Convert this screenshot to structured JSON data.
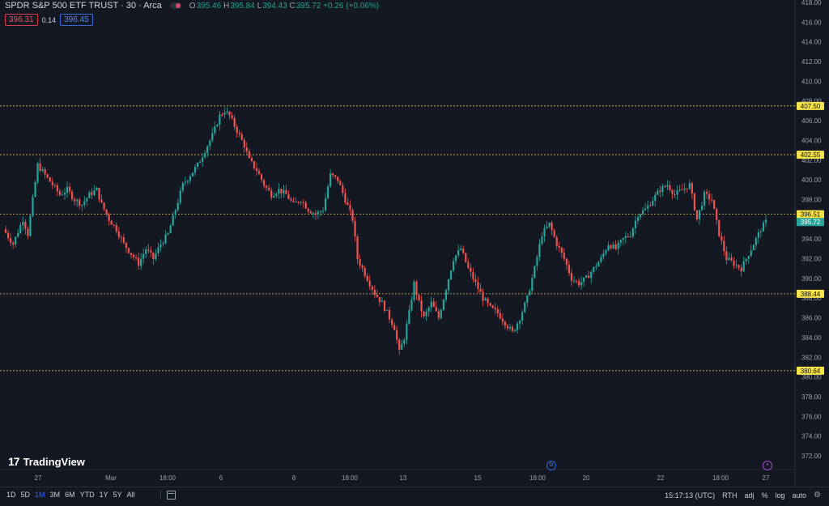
{
  "legend": {
    "title": "SPDR S&P 500 ETF TRUST · 30 · Arca",
    "o_label": "O",
    "o_value": "395.46",
    "h_label": "H",
    "h_value": "395.84",
    "l_label": "L",
    "l_value": "394.43",
    "c_label": "C",
    "c_value": "395.72",
    "change": "+0.26 (+0.06%)"
  },
  "quote": {
    "sell": "396.31",
    "spread": "0.14",
    "buy": "396.45"
  },
  "branding": {
    "logo_mark": "17",
    "name": "TradingView"
  },
  "event_markers": {
    "dividend_letter": "D",
    "earnings_icon": "lightning-icon"
  },
  "bottom_bar": {
    "ranges": [
      "1D",
      "5D",
      "1M",
      "3M",
      "6M",
      "YTD",
      "1Y",
      "5Y",
      "All"
    ],
    "active_range": "1M",
    "time": "15:17:13 (UTC)",
    "session": "RTH",
    "adj": "adj",
    "percent": "%",
    "log": "log",
    "auto": "auto"
  },
  "colors": {
    "background": "#141823",
    "up": "#26a69a",
    "down": "#ef5350",
    "level_line": "#e3c04f",
    "level_label_bg": "#f5e14a",
    "last_price_bg": "#26a69a"
  },
  "chart_data": {
    "type": "candlestick",
    "y_axis": {
      "min": 372,
      "max": 418,
      "tick_labels": [
        "418.00",
        "416.00",
        "414.00",
        "412.00",
        "410.00",
        "408.00",
        "406.00",
        "404.00",
        "402.00",
        "400.00",
        "398.00",
        "396.00",
        "394.00",
        "392.00",
        "390.00",
        "388.00",
        "386.00",
        "384.00",
        "382.00",
        "380.00",
        "378.00",
        "376.00",
        "374.00",
        "372.00"
      ]
    },
    "x_axis": {
      "tick_labels": [
        "27",
        "Mar",
        "18:00",
        "6",
        "8",
        "18:00",
        "13",
        "15",
        "18:00",
        "20",
        "22",
        "18:00",
        "27"
      ]
    },
    "levels": [
      {
        "value": "407.50"
      },
      {
        "value": "402.55"
      },
      {
        "value": "396.51"
      },
      {
        "value": "388.44"
      },
      {
        "value": "380.64"
      }
    ],
    "last_price": "395.72",
    "path": [
      [
        0,
        395.0
      ],
      [
        4,
        393.5
      ],
      [
        8,
        396.0
      ],
      [
        10,
        394.5
      ],
      [
        14,
        401.5
      ],
      [
        17,
        400.5
      ],
      [
        20,
        399.5
      ],
      [
        23,
        398.5
      ],
      [
        26,
        399.0
      ],
      [
        29,
        398.0
      ],
      [
        32,
        397.5
      ],
      [
        35,
        398.5
      ],
      [
        38,
        399.0
      ],
      [
        40,
        397.5
      ],
      [
        43,
        396.0
      ],
      [
        46,
        395.0
      ],
      [
        49,
        393.5
      ],
      [
        52,
        392.5
      ],
      [
        55,
        391.5
      ],
      [
        58,
        393.0
      ],
      [
        61,
        392.0
      ],
      [
        64,
        393.5
      ],
      [
        67,
        394.5
      ],
      [
        70,
        397.0
      ],
      [
        73,
        399.5
      ],
      [
        76,
        400.5
      ],
      [
        79,
        401.5
      ],
      [
        82,
        403.0
      ],
      [
        85,
        404.5
      ],
      [
        88,
        406.5
      ],
      [
        90,
        407.0
      ],
      [
        92,
        406.5
      ],
      [
        94,
        405.5
      ],
      [
        96,
        404.5
      ],
      [
        98,
        403.5
      ],
      [
        100,
        402.0
      ],
      [
        103,
        401.0
      ],
      [
        106,
        399.5
      ],
      [
        109,
        398.5
      ],
      [
        112,
        399.0
      ],
      [
        115,
        398.5
      ],
      [
        118,
        397.5
      ],
      [
        121,
        398.0
      ],
      [
        124,
        397.0
      ],
      [
        127,
        396.5
      ],
      [
        130,
        397.0
      ],
      [
        133,
        400.5
      ],
      [
        136,
        400.0
      ],
      [
        139,
        398.0
      ],
      [
        142,
        396.0
      ],
      [
        144,
        392.0
      ],
      [
        146,
        391.0
      ],
      [
        148,
        390.0
      ],
      [
        151,
        388.5
      ],
      [
        154,
        387.5
      ],
      [
        157,
        386.0
      ],
      [
        159,
        385.0
      ],
      [
        161,
        382.5
      ],
      [
        163,
        384.0
      ],
      [
        165,
        386.5
      ],
      [
        167,
        389.5
      ],
      [
        169,
        387.5
      ],
      [
        171,
        386.0
      ],
      [
        174,
        387.5
      ],
      [
        177,
        386.0
      ],
      [
        180,
        389.0
      ],
      [
        183,
        392.0
      ],
      [
        186,
        393.0
      ],
      [
        189,
        391.0
      ],
      [
        192,
        389.5
      ],
      [
        195,
        388.0
      ],
      [
        198,
        387.0
      ],
      [
        201,
        386.5
      ],
      [
        204,
        385.5
      ],
      [
        207,
        384.5
      ],
      [
        210,
        386.0
      ],
      [
        213,
        388.0
      ],
      [
        216,
        391.0
      ],
      [
        219,
        394.5
      ],
      [
        222,
        395.5
      ],
      [
        225,
        393.5
      ],
      [
        228,
        392.0
      ],
      [
        231,
        390.0
      ],
      [
        234,
        389.5
      ],
      [
        237,
        390.0
      ],
      [
        240,
        391.0
      ],
      [
        243,
        392.0
      ],
      [
        246,
        393.5
      ],
      [
        249,
        393.0
      ],
      [
        252,
        394.0
      ],
      [
        255,
        394.5
      ],
      [
        258,
        396.5
      ],
      [
        261,
        397.0
      ],
      [
        264,
        398.0
      ],
      [
        267,
        399.0
      ],
      [
        270,
        399.5
      ],
      [
        273,
        398.5
      ],
      [
        276,
        399.0
      ],
      [
        279,
        399.5
      ],
      [
        282,
        396.0
      ],
      [
        285,
        398.5
      ],
      [
        288,
        398.0
      ],
      [
        291,
        394.5
      ],
      [
        294,
        392.0
      ],
      [
        297,
        391.5
      ],
      [
        300,
        391.0
      ],
      [
        303,
        392.5
      ],
      [
        306,
        394.0
      ],
      [
        308,
        395.0
      ],
      [
        310,
        395.72
      ]
    ]
  }
}
